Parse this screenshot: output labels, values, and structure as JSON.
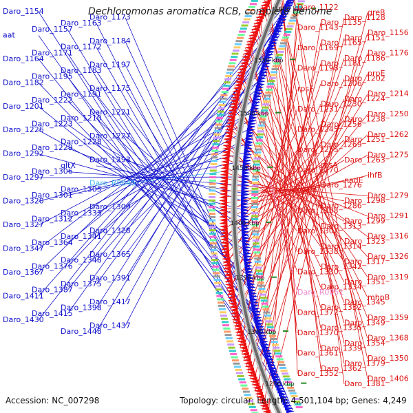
{
  "title": "Dechloromonas aromatica RCB, complete genome",
  "accession": "Accession: NC_007298",
  "summary": "Topology: circular; Length: 4,501,104 bp; Genes: 4,249",
  "colors": {
    "left_label": "#1010cc",
    "right_label": "#dd1111",
    "rna_label": "#44bbee",
    "pseudo_label": "#ee88cc",
    "backbone": "#6a6a6a",
    "tick": "#228822",
    "forward_strand": "#1010dd",
    "reverse_strand": "#ee1111"
  },
  "scale_ticks": [
    "1250 kbp",
    "1300 kbp",
    "1350 kbp",
    "1400 kbp",
    "1450 kbp",
    "1500 kbp",
    "1550 kbp",
    "1600 kbp"
  ],
  "left_labels": [
    {
      "text": "Daro_1154",
      "kind": "gene"
    },
    {
      "text": "Daro_1173",
      "kind": "gene"
    },
    {
      "text": "Daro_1163",
      "kind": "gene"
    },
    {
      "text": "Daro_1157",
      "kind": "gene"
    },
    {
      "text": "aat",
      "kind": "gene"
    },
    {
      "text": "Daro_1184",
      "kind": "gene"
    },
    {
      "text": "Daro_1172",
      "kind": "gene"
    },
    {
      "text": "Daro_1171",
      "kind": "gene"
    },
    {
      "text": "Daro_1164",
      "kind": "gene"
    },
    {
      "text": "Daro_1197",
      "kind": "gene"
    },
    {
      "text": "Daro_1183",
      "kind": "gene"
    },
    {
      "text": "Daro_1195",
      "kind": "gene"
    },
    {
      "text": "Daro_1182",
      "kind": "gene"
    },
    {
      "text": "Daro_1175",
      "kind": "gene"
    },
    {
      "text": "Daro_1191",
      "kind": "gene"
    },
    {
      "text": "Daro_1222",
      "kind": "gene"
    },
    {
      "text": "Daro_1201",
      "kind": "gene"
    },
    {
      "text": "Daro_1221",
      "kind": "gene"
    },
    {
      "text": "Daro_1210",
      "kind": "gene"
    },
    {
      "text": "Daro_1223",
      "kind": "gene"
    },
    {
      "text": "Daro_1226",
      "kind": "gene"
    },
    {
      "text": "Daro_1227",
      "kind": "gene"
    },
    {
      "text": "Daro_1228",
      "kind": "gene"
    },
    {
      "text": "Daro_1229",
      "kind": "gene"
    },
    {
      "text": "Daro_1292",
      "kind": "gene"
    },
    {
      "text": "Daro_1293",
      "kind": "gene"
    },
    {
      "text": "gltX",
      "kind": "gene"
    },
    {
      "text": "Daro_1306",
      "kind": "gene"
    },
    {
      "text": "Daro_1297",
      "kind": "gene"
    },
    {
      "text": "Daro_R0045",
      "kind": "rna"
    },
    {
      "text": "Daro_1305",
      "kind": "gene"
    },
    {
      "text": "Daro_1301",
      "kind": "gene"
    },
    {
      "text": "Daro_1320",
      "kind": "gene"
    },
    {
      "text": "Daro_1309",
      "kind": "gene"
    },
    {
      "text": "Daro_1333",
      "kind": "gene"
    },
    {
      "text": "Daro_1312",
      "kind": "gene"
    },
    {
      "text": "Daro_1327",
      "kind": "gene"
    },
    {
      "text": "Daro_1328",
      "kind": "gene"
    },
    {
      "text": "Daro_1341",
      "kind": "gene"
    },
    {
      "text": "Daro_1364",
      "kind": "gene"
    },
    {
      "text": "Daro_1347",
      "kind": "gene"
    },
    {
      "text": "Daro_1365",
      "kind": "gene"
    },
    {
      "text": "Daro_1348",
      "kind": "gene"
    },
    {
      "text": "Daro_1376",
      "kind": "gene"
    },
    {
      "text": "Daro_1367",
      "kind": "gene"
    },
    {
      "text": "Daro_1391",
      "kind": "gene"
    },
    {
      "text": "Daro_1375",
      "kind": "gene"
    },
    {
      "text": "Daro_1387",
      "kind": "gene"
    },
    {
      "text": "Daro_1411",
      "kind": "gene"
    },
    {
      "text": "Daro_1417",
      "kind": "gene"
    },
    {
      "text": "Daro_1398",
      "kind": "gene"
    },
    {
      "text": "Daro_1415",
      "kind": "gene"
    },
    {
      "text": "Daro_1430",
      "kind": "gene"
    },
    {
      "text": "Daro_1437",
      "kind": "gene"
    },
    {
      "text": "Daro_1448",
      "kind": "gene"
    }
  ],
  "right_labels": [
    {
      "text": "Daro_1122",
      "kind": "gene"
    },
    {
      "text": "greB",
      "kind": "gene"
    },
    {
      "text": "Daro_1128",
      "kind": "gene"
    },
    {
      "text": "Daro_1135",
      "kind": "gene"
    },
    {
      "text": "Daro_1143",
      "kind": "gene"
    },
    {
      "text": "Daro_1156",
      "kind": "gene"
    },
    {
      "text": "Daro_1151",
      "kind": "gene"
    },
    {
      "text": "Daro_1165",
      "kind": "gene"
    },
    {
      "text": "Daro_1169",
      "kind": "gene"
    },
    {
      "text": "Daro_1176",
      "kind": "gene"
    },
    {
      "text": "Daro_1186",
      "kind": "gene"
    },
    {
      "text": "Daro_1181",
      "kind": "gene"
    },
    {
      "text": "Daro_1198",
      "kind": "gene"
    },
    {
      "text": "prpE",
      "kind": "gene"
    },
    {
      "text": "Daro_1202",
      "kind": "gene"
    },
    {
      "text": "Daro_1206",
      "kind": "gene"
    },
    {
      "text": "rpsF",
      "kind": "gene"
    },
    {
      "text": "Daro_1214",
      "kind": "gene"
    },
    {
      "text": "Daro_1224",
      "kind": "gene"
    },
    {
      "text": "Daro_1230",
      "kind": "gene"
    },
    {
      "text": "Daro_1231",
      "kind": "gene"
    },
    {
      "text": "Daro_1250",
      "kind": "gene"
    },
    {
      "text": "Daro_1238",
      "kind": "gene"
    },
    {
      "text": "Daro_1256",
      "kind": "gene"
    },
    {
      "text": "Daro_1245",
      "kind": "gene"
    },
    {
      "text": "Daro_1262",
      "kind": "gene"
    },
    {
      "text": "Daro_1251",
      "kind": "gene"
    },
    {
      "text": "Daro_1269",
      "kind": "gene"
    },
    {
      "text": "Daro_1255",
      "kind": "gene"
    },
    {
      "text": "Daro_1275",
      "kind": "gene"
    },
    {
      "text": "Daro_1263",
      "kind": "gene"
    },
    {
      "text": "rpsA",
      "kind": "gene"
    },
    {
      "text": "Daro_1270",
      "kind": "gene"
    },
    {
      "text": "ihfB",
      "kind": "gene"
    },
    {
      "text": "nadE",
      "kind": "gene"
    },
    {
      "text": "Daro_1276",
      "kind": "gene"
    },
    {
      "text": "cysM",
      "kind": "gene"
    },
    {
      "text": "Daro_1279",
      "kind": "gene"
    },
    {
      "text": "Daro_1298",
      "kind": "gene"
    },
    {
      "text": "Daro_1286",
      "kind": "gene"
    },
    {
      "text": "Daro_1303",
      "kind": "gene"
    },
    {
      "text": "Daro_1291",
      "kind": "gene"
    },
    {
      "text": "Daro_1299",
      "kind": "gene"
    },
    {
      "text": "Daro_1313",
      "kind": "gene"
    },
    {
      "text": "Daro_1307",
      "kind": "gene"
    },
    {
      "text": "Daro_1316",
      "kind": "gene"
    },
    {
      "text": "Daro_1323",
      "kind": "gene"
    },
    {
      "text": "Daro_1314",
      "kind": "gene"
    },
    {
      "text": "Daro_1338",
      "kind": "gene"
    },
    {
      "text": "Daro_1326",
      "kind": "gene"
    },
    {
      "text": "Daro_1317",
      "kind": "gene"
    },
    {
      "text": "Daro_1342",
      "kind": "gene"
    },
    {
      "text": "Daro_1330",
      "kind": "gene"
    },
    {
      "text": "Daro_1319",
      "kind": "gene"
    },
    {
      "text": "Daro_1351",
      "kind": "gene"
    },
    {
      "text": "Daro_1334",
      "kind": "gene"
    },
    {
      "text": "Daro_R0051",
      "kind": "pseudo"
    },
    {
      "text": "mhpB",
      "kind": "gene"
    },
    {
      "text": "Daro_1345",
      "kind": "gene"
    },
    {
      "text": "Daro_1332",
      "kind": "gene"
    },
    {
      "text": "Daro_1372",
      "kind": "gene"
    },
    {
      "text": "Daro_1359",
      "kind": "gene"
    },
    {
      "text": "Daro_1349",
      "kind": "gene"
    },
    {
      "text": "Daro_1335",
      "kind": "gene"
    },
    {
      "text": "Daro_1370",
      "kind": "gene"
    },
    {
      "text": "Daro_1368",
      "kind": "gene"
    },
    {
      "text": "Daro_1354",
      "kind": "gene"
    },
    {
      "text": "Daro_1339",
      "kind": "gene"
    },
    {
      "text": "Daro_1361",
      "kind": "gene"
    },
    {
      "text": "Daro_1350",
      "kind": "gene"
    },
    {
      "text": "Daro_1379",
      "kind": "gene"
    },
    {
      "text": "Daro_1362",
      "kind": "gene"
    },
    {
      "text": "Daro_1352",
      "kind": "gene"
    },
    {
      "text": "Daro_1406",
      "kind": "gene"
    },
    {
      "text": "Daro_1381",
      "kind": "gene"
    }
  ]
}
